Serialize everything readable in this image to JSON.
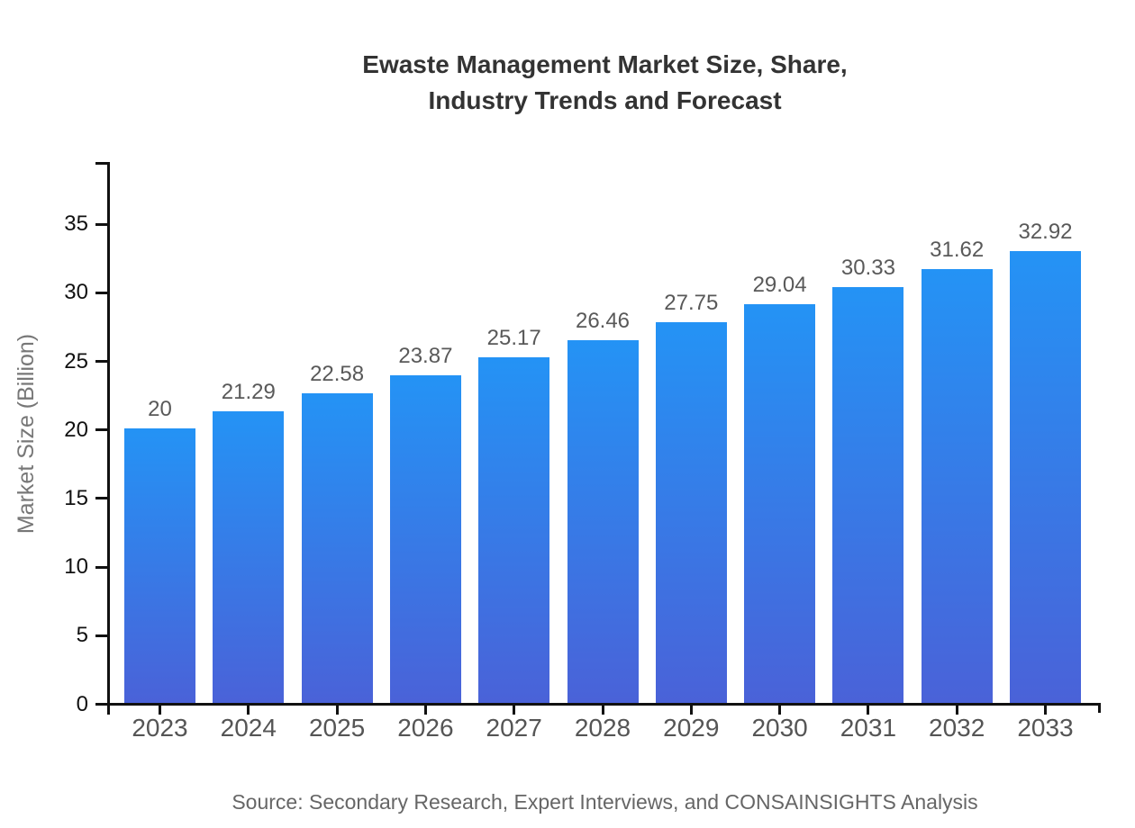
{
  "title": {
    "line1": "Ewaste Management Market Size, Share,",
    "line2": "Industry Trends and Forecast"
  },
  "source": "Source: Secondary Research, Expert Interviews, and CONSAINSIGHTS Analysis",
  "chart_data": {
    "type": "bar",
    "title": "Ewaste Management Market Size, Share, Industry Trends and Forecast",
    "categories": [
      "2023",
      "2024",
      "2025",
      "2026",
      "2027",
      "2028",
      "2029",
      "2030",
      "2031",
      "2032",
      "2033"
    ],
    "values": [
      20,
      21.29,
      22.58,
      23.87,
      25.17,
      26.46,
      27.75,
      29.04,
      30.33,
      31.62,
      32.92
    ],
    "value_labels": [
      "20",
      "21.29",
      "22.58",
      "23.87",
      "25.17",
      "26.46",
      "27.75",
      "29.04",
      "30.33",
      "31.62",
      "32.92"
    ],
    "xlabel": "",
    "ylabel": "Market Size (Billion)",
    "ylim": [
      0,
      39.4
    ],
    "yticks": [
      0,
      5,
      10,
      15,
      20,
      25,
      30,
      35
    ],
    "grid": false,
    "legend": null,
    "colors": {
      "bar_gradient_top": "#2493F5",
      "bar_gradient_bottom": "#4A62D8",
      "axis": "#111111",
      "value_label": "#595959",
      "x_tick_label": "#555555",
      "title": "#333333",
      "axis_label": "#777777",
      "source": "#666666"
    }
  }
}
